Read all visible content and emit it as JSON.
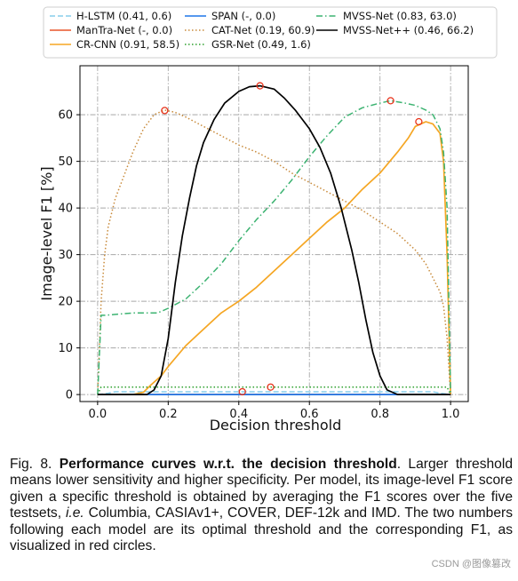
{
  "chart_data": {
    "type": "line",
    "xlabel": "Decision threshold",
    "ylabel": "Image-level F1 [%]",
    "xlim": [
      -0.05,
      1.05
    ],
    "ylim": [
      -1.5,
      70.5
    ],
    "xticks": [
      0.0,
      0.2,
      0.4,
      0.6,
      0.8,
      1.0
    ],
    "xtick_labels": [
      "0.0",
      "0.2",
      "0.4",
      "0.6",
      "0.8",
      "1.0"
    ],
    "yticks": [
      0,
      10,
      20,
      30,
      40,
      50,
      60
    ],
    "ytick_labels": [
      "0",
      "10",
      "20",
      "30",
      "40",
      "50",
      "60"
    ],
    "grid": "dash-dot gray vertical and horizontal lines at ticks",
    "legend_placement": "top, 3 columns",
    "series": [
      {
        "name": "H-LSTM (0.41, 0.6)",
        "color": "#87ceeb",
        "style": "dashed",
        "x": [
          0.0,
          0.03,
          0.05,
          0.95,
          0.97,
          1.0
        ],
        "y": [
          0.0,
          0.3,
          0.6,
          0.6,
          0.3,
          0.0
        ]
      },
      {
        "name": "ManTra-Net (-, 0.0)",
        "color": "#e8552a",
        "style": "solid",
        "x": [
          0.0,
          1.0
        ],
        "y": [
          0.0,
          0.0
        ]
      },
      {
        "name": "CR-CNN (0.91, 58.5)",
        "color": "#f5a623",
        "style": "solid",
        "x": [
          0.0,
          0.1,
          0.13,
          0.15,
          0.18,
          0.2,
          0.25,
          0.3,
          0.35,
          0.4,
          0.45,
          0.5,
          0.55,
          0.6,
          0.65,
          0.7,
          0.75,
          0.8,
          0.85,
          0.88,
          0.9,
          0.93,
          0.95,
          0.97,
          0.98,
          0.99,
          1.0
        ],
        "y": [
          0.0,
          0.0,
          0.5,
          2,
          4,
          6,
          10.5,
          14,
          17.5,
          20,
          23,
          26.5,
          30,
          33.5,
          37,
          40,
          44,
          47.5,
          52,
          55,
          57.5,
          58.5,
          58,
          56,
          50,
          30,
          0
        ]
      },
      {
        "name": "SPAN (-, 0.0)",
        "color": "#1f77e8",
        "style": "solid",
        "x": [
          0.0,
          1.0
        ],
        "y": [
          0.0,
          0.0
        ]
      },
      {
        "name": "CAT-Net (0.19, 60.9)",
        "color": "#c88a3a",
        "style": "dotted",
        "x": [
          0.0,
          0.01,
          0.02,
          0.03,
          0.05,
          0.07,
          0.1,
          0.13,
          0.16,
          0.19,
          0.22,
          0.25,
          0.3,
          0.35,
          0.4,
          0.45,
          0.5,
          0.55,
          0.6,
          0.65,
          0.7,
          0.75,
          0.8,
          0.85,
          0.9,
          0.93,
          0.95,
          0.97,
          0.98,
          0.99,
          1.0
        ],
        "y": [
          0.0,
          20,
          30,
          36,
          42,
          46,
          52,
          57,
          60,
          61,
          60.5,
          59.5,
          57.5,
          55.5,
          53.5,
          52,
          50,
          47.5,
          45.5,
          43.5,
          41.5,
          39.5,
          37,
          34.5,
          31,
          28,
          25,
          22,
          19,
          12,
          0
        ]
      },
      {
        "name": "GSR-Net (0.49, 1.6)",
        "color": "#2ca02c",
        "style": "dotted",
        "x": [
          0.0,
          0.01,
          0.02,
          0.98,
          0.99,
          1.0
        ],
        "y": [
          0.0,
          1.6,
          1.6,
          1.6,
          1.6,
          0.0
        ]
      },
      {
        "name": "MVSS-Net (0.83, 63.0)",
        "color": "#3cb371",
        "style": "dashdot",
        "x": [
          0.0,
          0.01,
          0.02,
          0.1,
          0.17,
          0.2,
          0.25,
          0.3,
          0.35,
          0.4,
          0.45,
          0.5,
          0.55,
          0.6,
          0.65,
          0.7,
          0.75,
          0.8,
          0.83,
          0.87,
          0.9,
          0.93,
          0.95,
          0.97,
          0.98,
          0.99,
          1.0
        ],
        "y": [
          0.0,
          17,
          17,
          17.5,
          17.5,
          18.5,
          20.5,
          24,
          28,
          33,
          37.5,
          41.5,
          46,
          51,
          55.5,
          59.5,
          61.5,
          62.5,
          63,
          62.5,
          62,
          61,
          60,
          57,
          52,
          40,
          0
        ]
      },
      {
        "name": "MVSS-Net++ (0.46, 66.2)",
        "color": "#000000",
        "style": "solid",
        "x": [
          0.0,
          0.14,
          0.16,
          0.18,
          0.2,
          0.22,
          0.24,
          0.26,
          0.28,
          0.3,
          0.33,
          0.36,
          0.4,
          0.43,
          0.46,
          0.5,
          0.53,
          0.56,
          0.6,
          0.63,
          0.66,
          0.69,
          0.72,
          0.74,
          0.76,
          0.78,
          0.8,
          0.82,
          0.85,
          1.0
        ],
        "y": [
          0.0,
          0.0,
          1,
          4,
          12,
          24,
          34,
          42,
          49,
          54,
          59,
          62.5,
          65,
          66,
          66.2,
          65.5,
          63.5,
          61,
          57,
          53,
          47.5,
          40,
          31,
          24,
          16,
          9,
          4,
          1,
          0,
          0
        ]
      }
    ],
    "optimal_points": [
      {
        "x": 0.41,
        "y": 0.6
      },
      {
        "x": 0.91,
        "y": 58.5
      },
      {
        "x": 0.19,
        "y": 60.9
      },
      {
        "x": 0.49,
        "y": 1.6
      },
      {
        "x": 0.83,
        "y": 63.0
      },
      {
        "x": 0.46,
        "y": 66.2
      }
    ],
    "marker_color": "#e8341c"
  },
  "caption": {
    "fig_label": "Fig. 8.",
    "bold": "Performance curves w.r.t. the decision threshold",
    "part1": ". Larger threshold means lower sensitivity and higher specificity. Per model, its image-level F1 score given a specific threshold is obtained by averaging the F1 scores over the five testsets, ",
    "italic": "i.e.",
    "part2": " Columbia, CASIAv1+, COVER, DEF-12k and IMD. The two numbers following each model are its optimal threshold and the corresponding F1, as visualized in red circles."
  },
  "watermark": "CSDN @图像篡改"
}
